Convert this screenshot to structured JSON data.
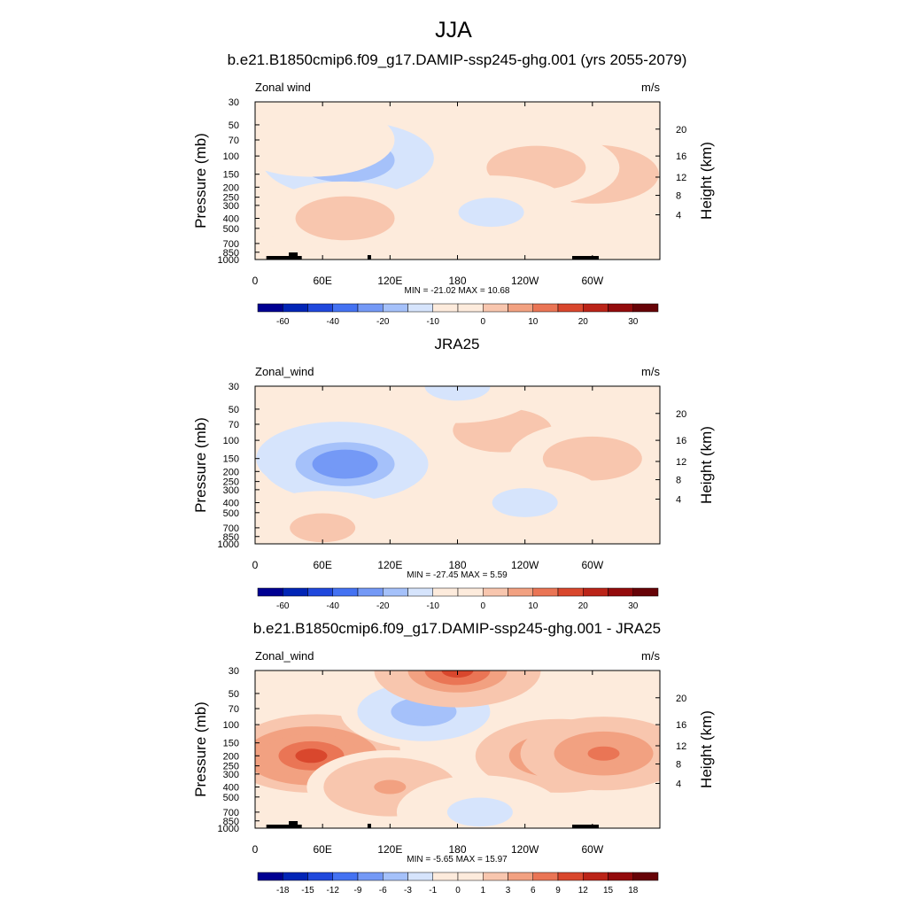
{
  "figure_title": "JJA",
  "colors": {
    "scale": [
      "#000092",
      "#0225b6",
      "#2048dc",
      "#4472f2",
      "#7499f6",
      "#a5c1fa",
      "#d6e4fc",
      "#fdebdc",
      "#f8c6ae",
      "#f2a181",
      "#ea7555",
      "#d9472d",
      "#bb2418",
      "#930b0c",
      "#670307"
    ],
    "land": "#000000",
    "frame": "#000000"
  },
  "chart_data": [
    {
      "type": "heatmap",
      "title": "b.e21.B1850cmip6.f09_g17.DAMIP-ssp245-ghg.001 (yrs 2055-2079)",
      "variable_label": "Zonal wind",
      "units_label": "m/s",
      "ylabel": "Pressure (mb)",
      "ylabel_right": "Height (km)",
      "x_ticks": [
        "0",
        "60E",
        "120E",
        "180",
        "120W",
        "60W"
      ],
      "y_ticks": [
        "30",
        "50",
        "70",
        "100",
        "150",
        "200",
        "250",
        "300",
        "400",
        "500",
        "700",
        "850",
        "1000"
      ],
      "y_right_ticks": [
        "20",
        "16",
        "12",
        "8",
        "4"
      ],
      "xlim": [
        0,
        360
      ],
      "ylim": [
        1000,
        30
      ],
      "log_pressure_axis": true,
      "min_max": "MIN = -21.02  MAX =  10.68",
      "colorbar_labels": [
        "-60",
        "-40",
        "-20",
        "-10",
        "0",
        "10",
        "20",
        "30"
      ],
      "background_value": 2,
      "features": [
        {
          "lon": 85,
          "p": 105,
          "value": -20
        },
        {
          "lon": 80,
          "p": 110,
          "value": -12
        },
        {
          "lon": 310,
          "p": 140,
          "value": 10
        },
        {
          "lon": 300,
          "p": 150,
          "value": 6
        },
        {
          "lon": 250,
          "p": 130,
          "value": 4
        },
        {
          "lon": 80,
          "p": 400,
          "value": 5
        },
        {
          "lon": 210,
          "p": 350,
          "value": -3
        },
        {
          "lon": 50,
          "p": 70,
          "value": 2
        }
      ]
    },
    {
      "type": "heatmap",
      "title": "JRA25",
      "variable_label": "Zonal_wind",
      "units_label": "m/s",
      "ylabel": "Pressure (mb)",
      "ylabel_right": "Height (km)",
      "x_ticks": [
        "0",
        "60E",
        "120E",
        "180",
        "120W",
        "60W"
      ],
      "y_ticks": [
        "30",
        "50",
        "70",
        "100",
        "150",
        "200",
        "250",
        "300",
        "400",
        "500",
        "700",
        "850",
        "1000"
      ],
      "y_right_ticks": [
        "20",
        "16",
        "12",
        "8",
        "4"
      ],
      "xlim": [
        0,
        360
      ],
      "ylim": [
        1000,
        30
      ],
      "log_pressure_axis": true,
      "min_max": "MIN = -27.45  MAX =   5.59",
      "colorbar_labels": [
        "-60",
        "-40",
        "-20",
        "-10",
        "0",
        "10",
        "20",
        "30"
      ],
      "background_value": 1,
      "features": [
        {
          "lon": 75,
          "p": 150,
          "value": -27
        },
        {
          "lon": 80,
          "p": 170,
          "value": -15
        },
        {
          "lon": 220,
          "p": 80,
          "value": 4
        },
        {
          "lon": 300,
          "p": 150,
          "value": 5
        },
        {
          "lon": 240,
          "p": 400,
          "value": -3
        },
        {
          "lon": 60,
          "p": 700,
          "value": 3
        },
        {
          "lon": 180,
          "p": 30,
          "value": -3
        }
      ]
    },
    {
      "type": "heatmap",
      "title": "b.e21.B1850cmip6.f09_g17.DAMIP-ssp245-ghg.001 - JRA25",
      "variable_label": "Zonal_wind",
      "units_label": "m/s",
      "ylabel": "Pressure (mb)",
      "ylabel_right": "Height (km)",
      "x_ticks": [
        "0",
        "60E",
        "120E",
        "180",
        "120W",
        "60W"
      ],
      "y_ticks": [
        "30",
        "50",
        "70",
        "100",
        "150",
        "200",
        "250",
        "300",
        "400",
        "500",
        "700",
        "850",
        "1000"
      ],
      "y_right_ticks": [
        "20",
        "16",
        "12",
        "8",
        "4"
      ],
      "xlim": [
        0,
        360
      ],
      "ylim": [
        1000,
        30
      ],
      "log_pressure_axis": true,
      "min_max": "MIN =  -5.65  MAX =  15.97",
      "colorbar_labels": [
        "-18",
        "-15",
        "-12",
        "-9",
        "-6",
        "-3",
        "-1",
        "0",
        "1",
        "3",
        "6",
        "9",
        "12",
        "15",
        "18"
      ],
      "background_value": 1,
      "features": [
        {
          "lon": 55,
          "p": 180,
          "value": 16
        },
        {
          "lon": 50,
          "p": 200,
          "value": 10
        },
        {
          "lon": 270,
          "p": 200,
          "value": 9
        },
        {
          "lon": 310,
          "p": 190,
          "value": 8
        },
        {
          "lon": 150,
          "p": 75,
          "value": -5
        },
        {
          "lon": 180,
          "p": 30,
          "value": 9
        },
        {
          "lon": 120,
          "p": 400,
          "value": 4
        },
        {
          "lon": 200,
          "p": 700,
          "value": -2
        }
      ]
    }
  ]
}
